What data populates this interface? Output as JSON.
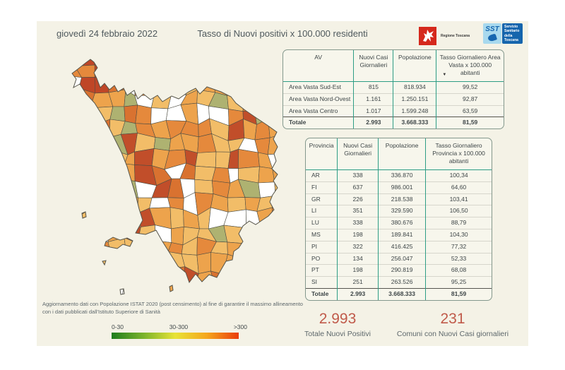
{
  "header": {
    "date": "giovedì 24 febbraio 2022",
    "title": "Tasso di Nuovi positivi x 100.000 residenti"
  },
  "logos": {
    "regione_label": "Regione Toscana",
    "sst_abbr": "SST",
    "sst_label": "Servizio Sanitario della Toscana"
  },
  "area_table": {
    "headers": [
      "AV",
      "Nuovi Casi Giornalieri",
      "Popolazione",
      "Tasso Giornaliero Area Vasta x 100.000 abitanti"
    ],
    "sort_column": 3,
    "sort_icon": "▼",
    "rows": [
      [
        "Area Vasta Sud-Est",
        "815",
        "818.934",
        "99,52"
      ],
      [
        "Area Vasta Nord-Ovest",
        "1.161",
        "1.250.151",
        "92,87"
      ],
      [
        "Area Vasta Centro",
        "1.017",
        "1.599.248",
        "63,59"
      ]
    ],
    "total": [
      "Totale",
      "2.993",
      "3.668.333",
      "81,59"
    ]
  },
  "province_table": {
    "headers": [
      "Provincia",
      "Nuovi Casi Giornalieri",
      "Popolazione",
      "Tasso Giornaliero Provincia x 100.000 abitanti"
    ],
    "rows": [
      [
        "AR",
        "338",
        "336.870",
        "100,34"
      ],
      [
        "FI",
        "637",
        "986.001",
        "64,60"
      ],
      [
        "GR",
        "226",
        "218.538",
        "103,41"
      ],
      [
        "LI",
        "351",
        "329.590",
        "106,50"
      ],
      [
        "LU",
        "338",
        "380.676",
        "88,79"
      ],
      [
        "MS",
        "198",
        "189.841",
        "104,30"
      ],
      [
        "PI",
        "322",
        "416.425",
        "77,32"
      ],
      [
        "PO",
        "134",
        "256.047",
        "52,33"
      ],
      [
        "PT",
        "198",
        "290.819",
        "68,08"
      ],
      [
        "SI",
        "251",
        "263.526",
        "95,25"
      ]
    ],
    "total": [
      "Totale",
      "2.993",
      "3.668.333",
      "81,59"
    ]
  },
  "note": "Aggiornamento dati con Popolazione ISTAT 2020 (post censimento) al fine di garantire il massimo allineamento\ncon i dati pubblicati dall'Istituto Superiore di Sanità",
  "legend": {
    "labels": [
      "0-30",
      "30-300",
      ">300"
    ],
    "gradient": [
      "#1e7d1e",
      "#7ab32c",
      "#e8e336",
      "#f5a61d",
      "#ea3c0a"
    ]
  },
  "summary": {
    "total_value": "2.993",
    "total_label": "Totale Nuovi Positivi",
    "comuni_value": "231",
    "comuni_label": "Comuni con Nuovi Casi giornalieri"
  },
  "map": {
    "region": "Toscana",
    "cell_border": "#4f4e44",
    "outline_color": "#55544a",
    "hotspot_color": "#bf4627",
    "palette": [
      {
        "color": "#f2bd68",
        "weight": 0.26
      },
      {
        "color": "#eda34c",
        "weight": 0.25
      },
      {
        "color": "#e5893c",
        "weight": 0.17
      },
      {
        "color": "#d97230",
        "weight": 0.08
      },
      {
        "color": "#c14e2a",
        "weight": 0.045
      },
      {
        "color": "#aeb271",
        "weight": 0.055
      },
      {
        "color": "#ffffff",
        "weight": 0.14
      }
    ]
  },
  "chart_data": [
    {
      "type": "table",
      "title": "Nuovi casi per Area Vasta",
      "columns": [
        "AV",
        "Nuovi Casi Giornalieri",
        "Popolazione",
        "Tasso Giornaliero Area Vasta x 100.000 abitanti"
      ],
      "rows": [
        [
          "Area Vasta Sud-Est",
          815,
          818934,
          99.52
        ],
        [
          "Area Vasta Nord-Ovest",
          1161,
          1250151,
          92.87
        ],
        [
          "Area Vasta Centro",
          1017,
          1599248,
          63.59
        ],
        [
          "Totale",
          2993,
          3668333,
          81.59
        ]
      ]
    },
    {
      "type": "table",
      "title": "Nuovi casi per Provincia",
      "columns": [
        "Provincia",
        "Nuovi Casi Giornalieri",
        "Popolazione",
        "Tasso Giornaliero Provincia x 100.000 abitanti"
      ],
      "rows": [
        [
          "AR",
          338,
          336870,
          100.34
        ],
        [
          "FI",
          637,
          986001,
          64.6
        ],
        [
          "GR",
          226,
          218538,
          103.41
        ],
        [
          "LI",
          351,
          329590,
          106.5
        ],
        [
          "LU",
          338,
          380676,
          88.79
        ],
        [
          "MS",
          198,
          189841,
          104.3
        ],
        [
          "PI",
          322,
          416425,
          77.32
        ],
        [
          "PO",
          134,
          256047,
          52.33
        ],
        [
          "PT",
          198,
          290819,
          68.08
        ],
        [
          "SI",
          251,
          263526,
          95.25
        ],
        [
          "Totale",
          2993,
          3668333,
          81.59
        ]
      ]
    },
    {
      "type": "heatmap",
      "subtype": "choropleth-map",
      "region": "Toscana (comuni)",
      "metric": "Tasso di Nuovi positivi x 100.000 residenti",
      "legend_bins": [
        "0-30",
        "30-300",
        ">300"
      ],
      "kpis": {
        "totale_nuovi_positivi": 2993,
        "comuni_con_nuovi_casi": 231
      }
    }
  ]
}
